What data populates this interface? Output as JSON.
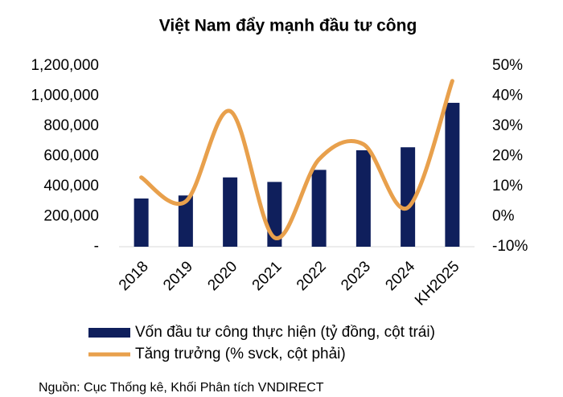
{
  "chart_data": {
    "type": "bar-line",
    "title": "Việt Nam đẩy mạnh đầu tư công",
    "categories": [
      "2018",
      "2019",
      "2020",
      "2021",
      "2022",
      "2023",
      "2024",
      "KH2025"
    ],
    "series": [
      {
        "name": "Vốn đầu tư công thực hiện (tỷ đồng, cột trái)",
        "type": "bar",
        "color": "#0f1f5c",
        "values": [
          320000,
          340000,
          460000,
          430000,
          510000,
          640000,
          660000,
          955000
        ]
      },
      {
        "name": "Tăng trưởng (% svck, cột phải)",
        "type": "line",
        "axis": "y2",
        "color": "#e8a04c",
        "values": [
          13,
          5,
          35,
          -7,
          19,
          24,
          3,
          45
        ]
      }
    ],
    "ylim": [
      0,
      1200000
    ],
    "yticks": [
      {
        "value": 0,
        "label": "-"
      },
      {
        "value": 200000,
        "label": "200,000"
      },
      {
        "value": 400000,
        "label": "400,000"
      },
      {
        "value": 600000,
        "label": "600,000"
      },
      {
        "value": 800000,
        "label": "800,000"
      },
      {
        "value": 1000000,
        "label": "1,000,000"
      },
      {
        "value": 1200000,
        "label": "1,200,000"
      }
    ],
    "y2lim": [
      -10,
      50
    ],
    "y2ticks": [
      {
        "value": -10,
        "label": "-10%"
      },
      {
        "value": 0,
        "label": "0%"
      },
      {
        "value": 10,
        "label": "10%"
      },
      {
        "value": 20,
        "label": "20%"
      },
      {
        "value": 30,
        "label": "30%"
      },
      {
        "value": 40,
        "label": "40%"
      },
      {
        "value": 50,
        "label": "50%"
      }
    ],
    "source": "Nguồn: Cục Thống kê, Khối Phân tích VNDIRECT"
  }
}
